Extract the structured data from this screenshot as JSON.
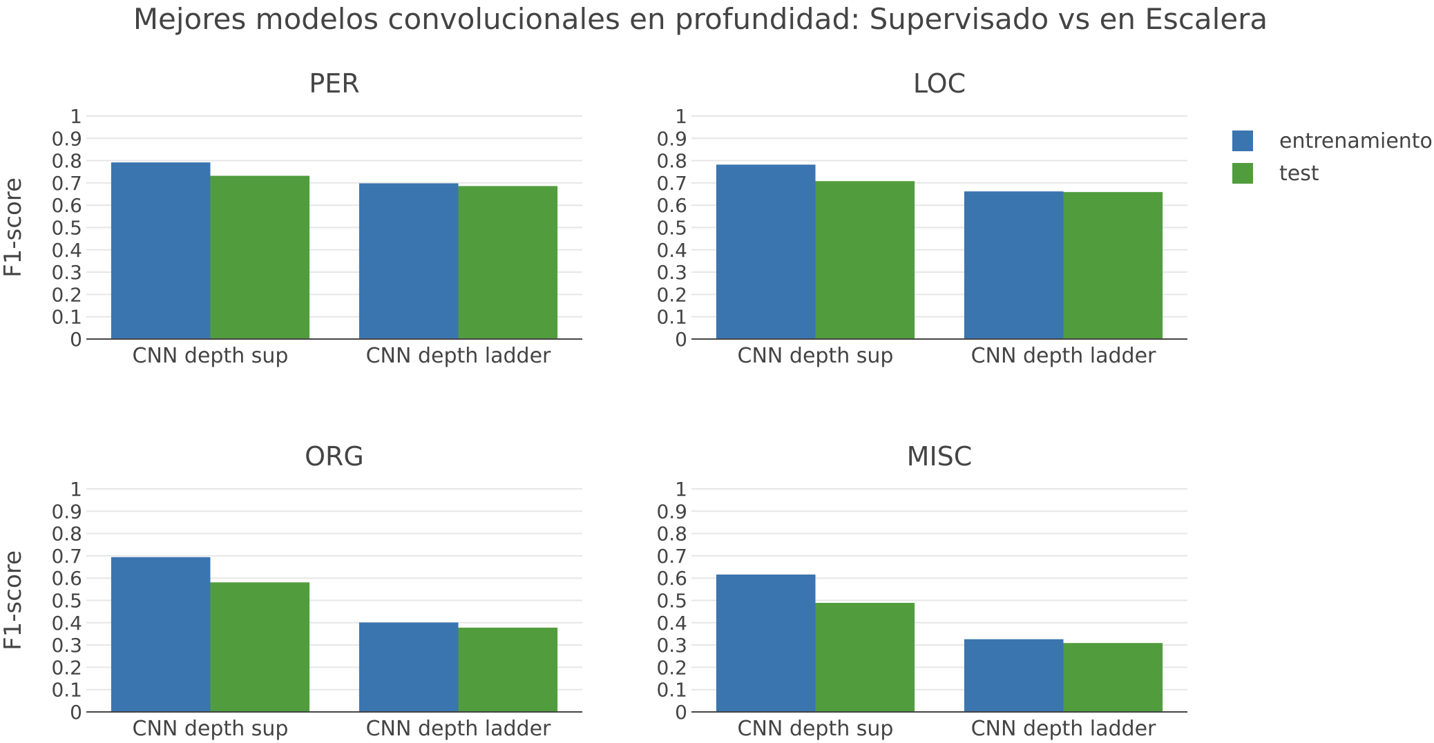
{
  "chart_data": {
    "type": "bar",
    "title": "Mejores modelos convolucionales en profundidad: Supervisado vs en Escalera",
    "ylabel": "F1-score",
    "ylim": [
      0,
      1
    ],
    "y_ticks": [
      "0",
      "0.1",
      "0.2",
      "0.3",
      "0.4",
      "0.5",
      "0.6",
      "0.7",
      "0.8",
      "0.9",
      "1"
    ],
    "categories": [
      "CNN depth sup",
      "CNN depth ladder"
    ],
    "grid": true,
    "legend_position": "top-right",
    "legend": [
      {
        "name": "entrenamiento",
        "color": "#3a75b0"
      },
      {
        "name": "test",
        "color": "#519d3e"
      }
    ],
    "panels": [
      {
        "title": "PER",
        "series": [
          {
            "name": "entrenamiento",
            "values": [
              0.792,
              0.698
            ]
          },
          {
            "name": "test",
            "values": [
              0.732,
              0.686
            ]
          }
        ]
      },
      {
        "title": "LOC",
        "series": [
          {
            "name": "entrenamiento",
            "values": [
              0.782,
              0.662
            ]
          },
          {
            "name": "test",
            "values": [
              0.708,
              0.659
            ]
          }
        ]
      },
      {
        "title": "ORG",
        "series": [
          {
            "name": "entrenamiento",
            "values": [
              0.694,
              0.401
            ]
          },
          {
            "name": "test",
            "values": [
              0.581,
              0.378
            ]
          }
        ]
      },
      {
        "title": "MISC",
        "series": [
          {
            "name": "entrenamiento",
            "values": [
              0.616,
              0.326
            ]
          },
          {
            "name": "test",
            "values": [
              0.489,
              0.309
            ]
          }
        ]
      }
    ]
  }
}
